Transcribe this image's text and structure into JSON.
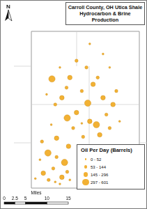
{
  "chart_data": {
    "type": "scatter",
    "title": [
      "Carroll County, OH Utica Shale",
      "Hydrocarbon & Brine Production"
    ],
    "annotations": {
      "north": "N",
      "legend_title": "Oil Per Day (Barrels)",
      "scale_unit": "Miles",
      "scale_ticks": [
        0,
        2.5,
        5,
        10,
        15
      ]
    },
    "xlim": [
      0,
      211
    ],
    "ylim": [
      0,
      300
    ],
    "tick_labels": false,
    "grid": false,
    "legend": "lower right",
    "marker": "circle",
    "series": [
      {
        "name": "0 - 52",
        "color": "#f2b134",
        "x": [
          150,
          160,
          85,
          130,
          118,
          72,
          55,
          78,
          100,
          175,
          65,
          48,
          85
        ],
        "y": [
          225,
          205,
          205,
          240,
          122,
          120,
          68,
          35,
          38,
          125,
          165,
          40,
          32
        ]
      },
      {
        "name": "53 - 144",
        "color": "#f2b134",
        "x": [
          110,
          125,
          95,
          142,
          118,
          78,
          105,
          155,
          120,
          80,
          68,
          96,
          160,
          170,
          58,
          75
        ],
        "y": [
          215,
          205,
          175,
          190,
          170,
          150,
          115,
          135,
          102,
          72,
          38,
          50,
          115,
          170,
          95,
          55
        ]
      },
      {
        "name": "145 - 296",
        "color": "#f2b134",
        "x": [
          100,
          88,
          110,
          150,
          130,
          80,
          145,
          98,
          60,
          88,
          135,
          165
        ],
        "y": [
          190,
          160,
          138,
          160,
          125,
          100,
          105,
          88,
          48,
          42,
          180,
          150
        ]
      },
      {
        "name": "297 - 601",
        "color": "#f2b134",
        "x": [
          73,
          127,
          96,
          140,
          67,
          92
        ],
        "y": [
          188,
          152,
          130,
          120,
          78,
          64
        ]
      }
    ]
  }
}
